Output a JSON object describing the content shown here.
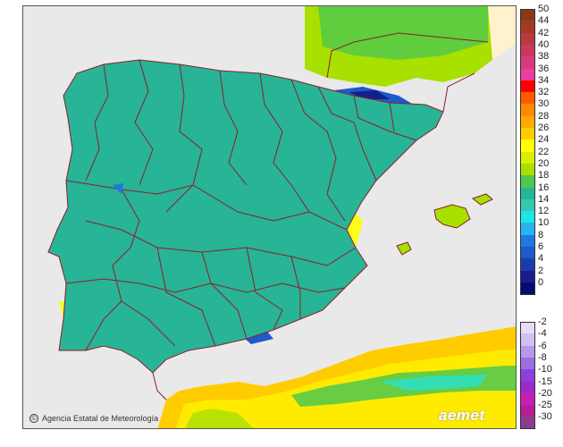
{
  "credit": {
    "text": "Agencia Estatal de Meteorología",
    "icon": "copyright-icon"
  },
  "brand": {
    "logo_text": "aemet"
  },
  "legend": {
    "positive": [
      {
        "label": "50",
        "color": "#8a3a12"
      },
      {
        "label": "44",
        "color": "#a23a2a"
      },
      {
        "label": "42",
        "color": "#b83a3a"
      },
      {
        "label": "40",
        "color": "#c83a58"
      },
      {
        "label": "38",
        "color": "#d63a7a"
      },
      {
        "label": "36",
        "color": "#ee3aa4"
      },
      {
        "label": "34",
        "color": "#ff0000"
      },
      {
        "label": "32",
        "color": "#ff5a00"
      },
      {
        "label": "30",
        "color": "#ff8a00"
      },
      {
        "label": "28",
        "color": "#ffaa00"
      },
      {
        "label": "26",
        "color": "#ffcc00"
      },
      {
        "label": "24",
        "color": "#ffff00"
      },
      {
        "label": "22",
        "color": "#d8f000"
      },
      {
        "label": "20",
        "color": "#a8e000"
      },
      {
        "label": "18",
        "color": "#4ec84e"
      },
      {
        "label": "16",
        "color": "#28b496"
      },
      {
        "label": "14",
        "color": "#32c8b4"
      },
      {
        "label": "12",
        "color": "#1ee6e6"
      },
      {
        "label": "10",
        "color": "#28b4f0"
      },
      {
        "label": "8",
        "color": "#1e78e6"
      },
      {
        "label": "6",
        "color": "#1e5ac8"
      },
      {
        "label": "4",
        "color": "#1a3caa"
      },
      {
        "label": "2",
        "color": "#141e8c"
      },
      {
        "label": "0",
        "color": "#0a0a6e"
      }
    ],
    "negative": [
      {
        "label": "-2",
        "color": "#e6dcf8"
      },
      {
        "label": "-4",
        "color": "#d2c0f0"
      },
      {
        "label": "-6",
        "color": "#b898e8"
      },
      {
        "label": "-8",
        "color": "#9c6ee0"
      },
      {
        "label": "-10",
        "color": "#8a40dc"
      },
      {
        "label": "-15",
        "color": "#a028c8"
      },
      {
        "label": "-20",
        "color": "#c81eb4"
      },
      {
        "label": "-25",
        "color": "#b41e96"
      },
      {
        "label": "-30",
        "color": "#8c3c8c"
      }
    ]
  },
  "colors": {
    "sea": "#e9e9e9",
    "land_cool": "#28b496",
    "land_mid": "#32c8b4",
    "land_cyan": "#1ee6e6",
    "land_warm": "#a8e000",
    "land_hot": "#ffff00",
    "land_very_hot": "#ffcc00",
    "mountain": "#1e5ac8",
    "border": "#8c1e2e"
  }
}
